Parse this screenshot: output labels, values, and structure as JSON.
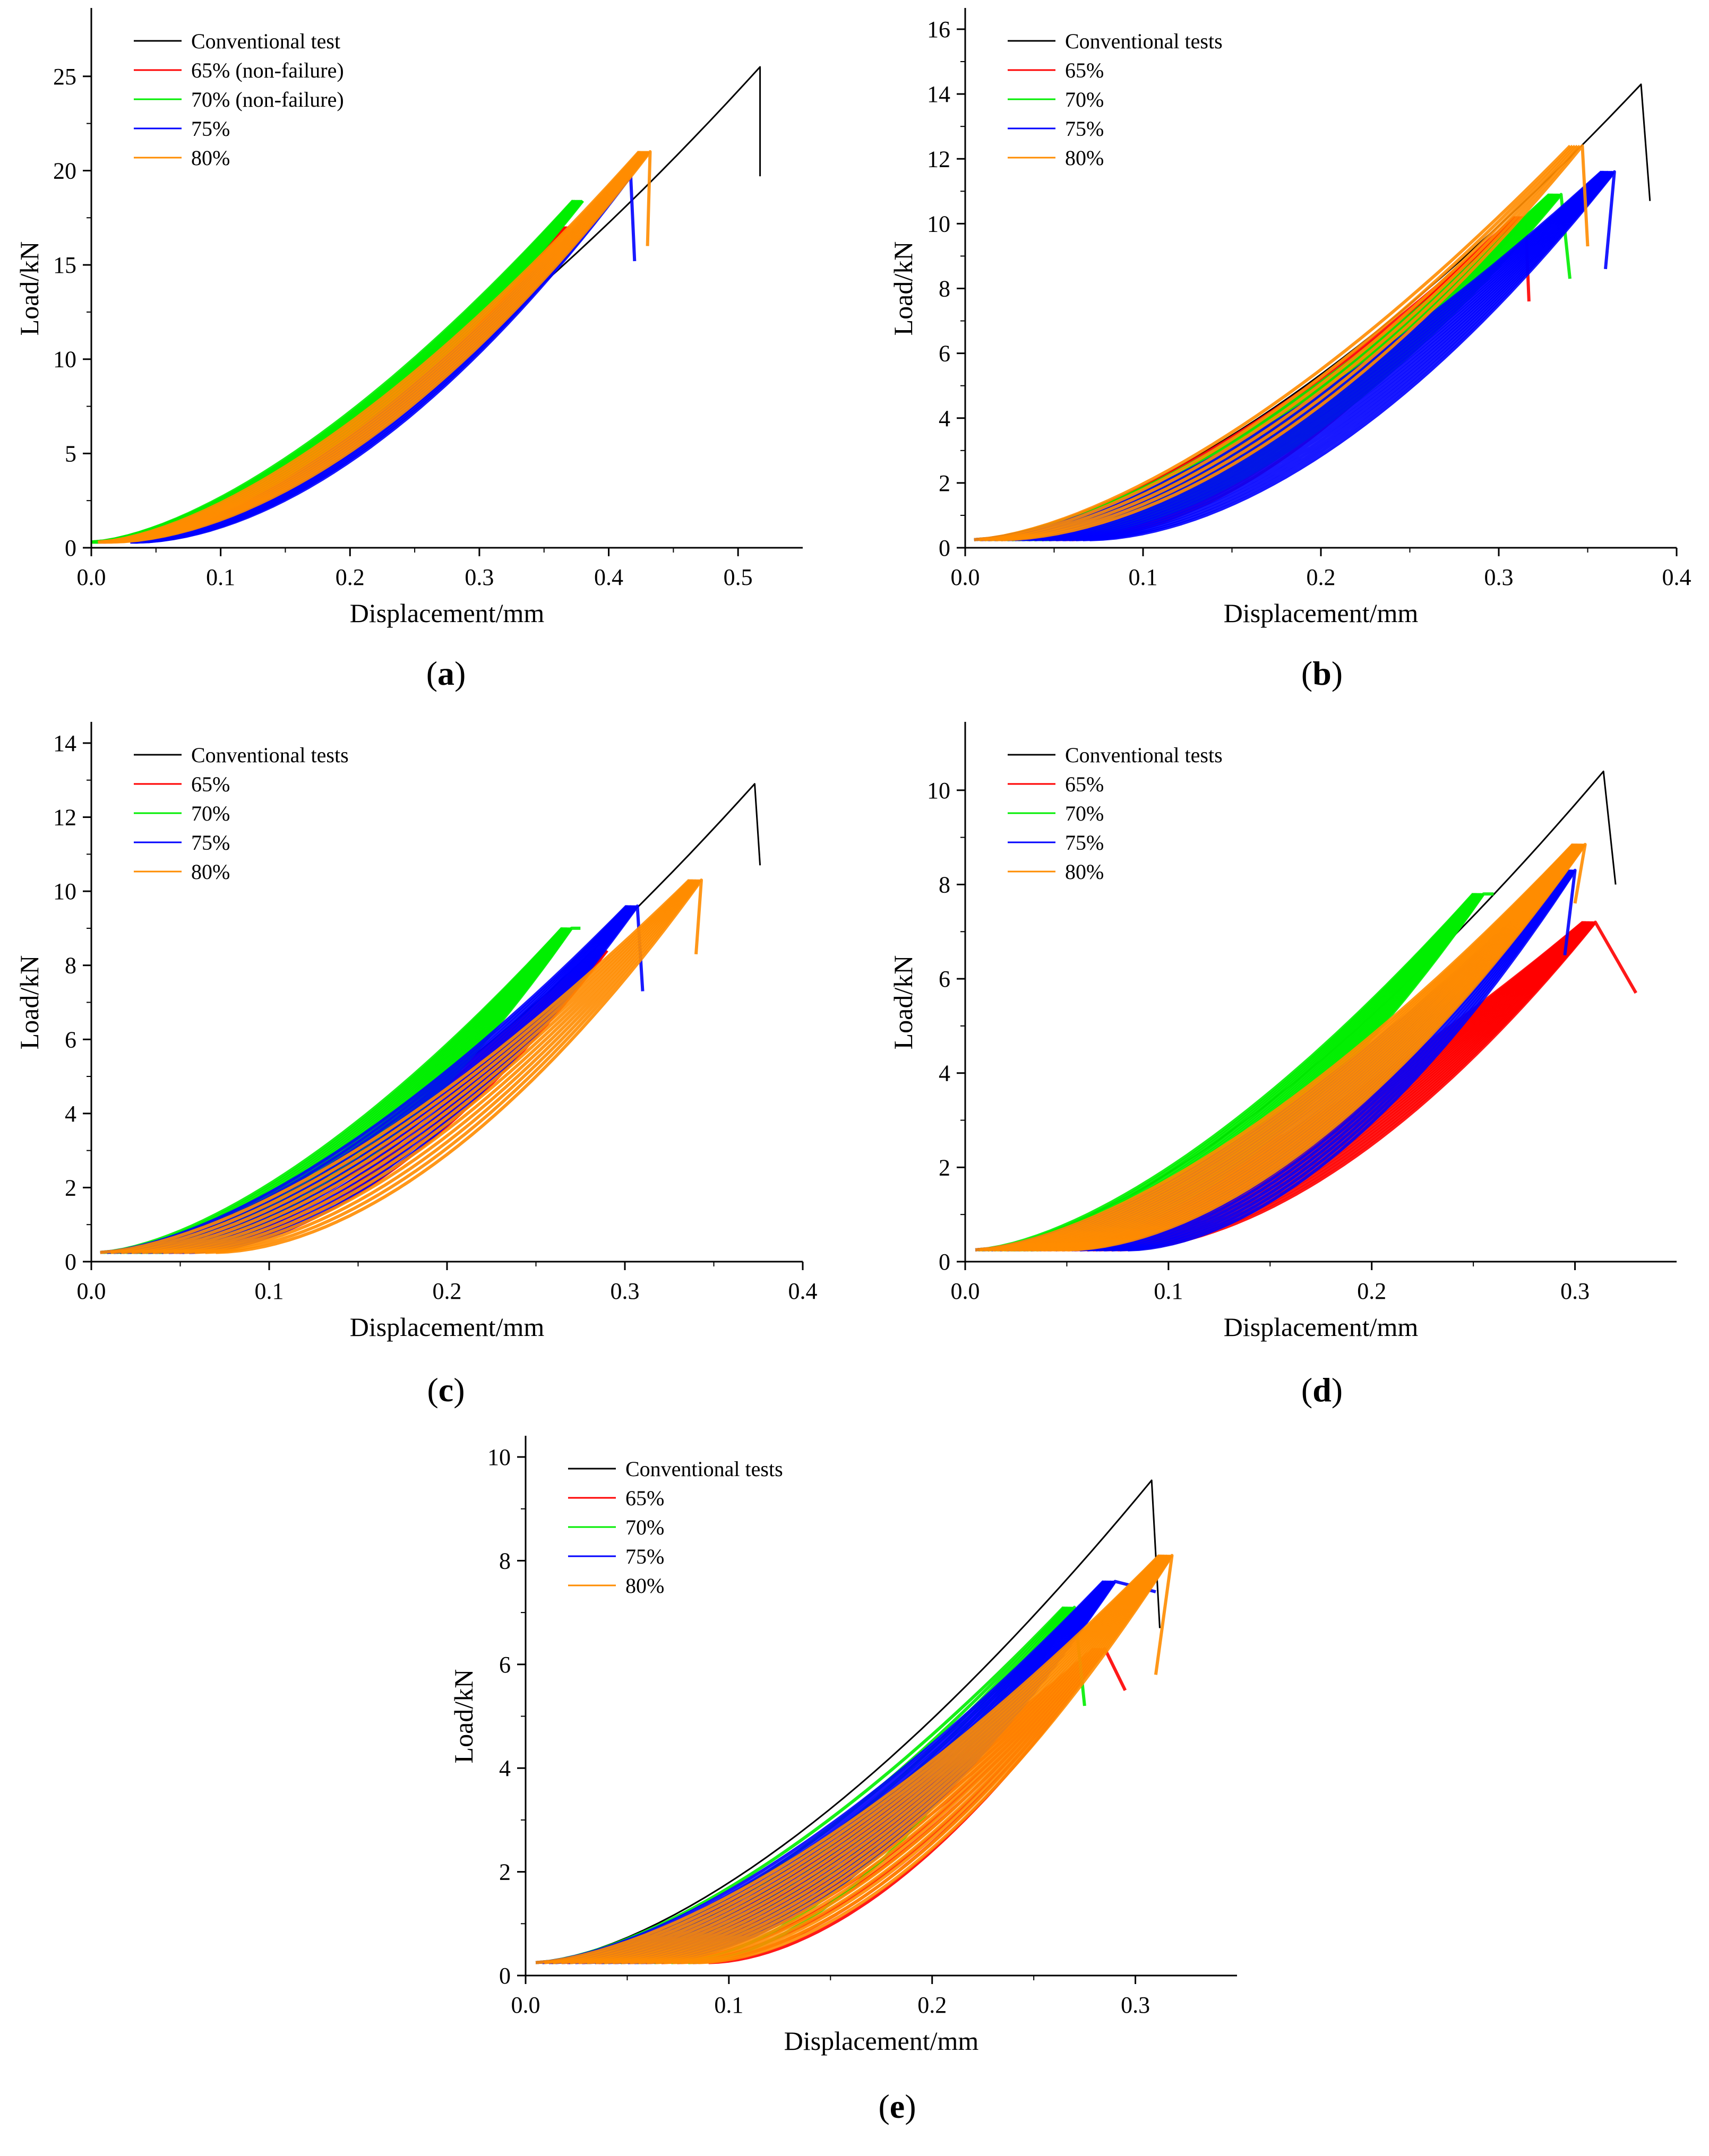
{
  "figure": {
    "panels": [
      {
        "id": "a",
        "caption_open": "(",
        "caption_letter": "a",
        "caption_close": ")"
      },
      {
        "id": "b",
        "caption_open": "(",
        "caption_letter": "b",
        "caption_close": ")"
      },
      {
        "id": "c",
        "caption_open": "(",
        "caption_letter": "c",
        "caption_close": ")"
      },
      {
        "id": "d",
        "caption_open": "(",
        "caption_letter": "d",
        "caption_close": ")"
      },
      {
        "id": "e",
        "caption_open": "(",
        "caption_letter": "e",
        "caption_close": ")"
      }
    ]
  },
  "chart_data": [
    {
      "type": "line",
      "panel": "a",
      "xlabel": "Displacement/mm",
      "ylabel": "Load/kN",
      "xlim": [
        0.0,
        0.55
      ],
      "ylim": [
        0,
        27.5
      ],
      "xticks": [
        0.0,
        0.1,
        0.2,
        0.3,
        0.4,
        0.5
      ],
      "xtick_labels": [
        "0.0",
        "0.1",
        "0.2",
        "0.3",
        "0.4",
        "0.5"
      ],
      "yticks": [
        0,
        5,
        10,
        15,
        20,
        25
      ],
      "ytick_labels": [
        "0",
        "5",
        "10",
        "15",
        "20",
        "25"
      ],
      "legend": {
        "placement": "top-left"
      },
      "series": [
        {
          "name": "Conventional test",
          "color": "#000000",
          "x0": 0.0,
          "y0": 0.3,
          "xpeak": 0.517,
          "ypeak": 25.5,
          "xend": 0.517,
          "yend": 19.7,
          "xmin": 0.0,
          "bands": 1
        },
        {
          "name": "65% (non-failure)",
          "color": "#ff0000",
          "x0": 0.0,
          "y0": 0.3,
          "xpeak": 0.37,
          "ypeak": 17.0,
          "xend": 0.37,
          "yend": 17.0,
          "xmin": 0.01,
          "bands": 10
        },
        {
          "name": "70% (non-failure)",
          "color": "#00ee00",
          "x0": 0.0,
          "y0": 0.3,
          "xpeak": 0.38,
          "ypeak": 18.4,
          "xend": 0.38,
          "yend": 18.4,
          "xmin": 0.005,
          "bands": 14
        },
        {
          "name": "75%",
          "color": "#0000ff",
          "x0": 0.03,
          "y0": 0.3,
          "xpeak": 0.417,
          "ypeak": 19.7,
          "xend": 0.42,
          "yend": 15.2,
          "xmin": 0.035,
          "bands": 12
        },
        {
          "name": "80%",
          "color": "#ff8c00",
          "x0": 0.005,
          "y0": 0.3,
          "xpeak": 0.432,
          "ypeak": 21.0,
          "xend": 0.43,
          "yend": 16.0,
          "xmin": 0.015,
          "bands": 12
        }
      ]
    },
    {
      "type": "line",
      "panel": "b",
      "xlabel": "Displacement/mm",
      "ylabel": "Load/kN",
      "xlim": [
        0.0,
        0.4
      ],
      "ylim": [
        0,
        16
      ],
      "xticks": [
        0.0,
        0.1,
        0.2,
        0.3,
        0.4
      ],
      "xtick_labels": [
        "0.0",
        "0.1",
        "0.2",
        "0.3",
        "0.4"
      ],
      "yticks": [
        0,
        2,
        4,
        6,
        8,
        10,
        12,
        14,
        16
      ],
      "ytick_labels": [
        "0",
        "2",
        "4",
        "6",
        "8",
        "10",
        "12",
        "14",
        "16"
      ],
      "legend": {
        "placement": "top-left"
      },
      "series": [
        {
          "name": "Conventional tests",
          "color": "#000000",
          "x0": 0.005,
          "y0": 0.25,
          "xpeak": 0.38,
          "ypeak": 14.3,
          "xend": 0.385,
          "yend": 10.7,
          "xmin": 0.005,
          "bands": 1
        },
        {
          "name": "65%",
          "color": "#ff0000",
          "x0": 0.005,
          "y0": 0.25,
          "xpeak": 0.315,
          "ypeak": 10.2,
          "xend": 0.317,
          "yend": 7.6,
          "xmin": 0.06,
          "bands": 14
        },
        {
          "name": "70%",
          "color": "#00ee00",
          "x0": 0.005,
          "y0": 0.25,
          "xpeak": 0.335,
          "ypeak": 10.9,
          "xend": 0.34,
          "yend": 8.3,
          "xmin": 0.045,
          "bands": 14
        },
        {
          "name": "75%",
          "color": "#0000ff",
          "x0": 0.005,
          "y0": 0.25,
          "xpeak": 0.365,
          "ypeak": 11.6,
          "xend": 0.36,
          "yend": 8.6,
          "xmin": 0.07,
          "bands": 18
        },
        {
          "name": "80%",
          "color": "#ff8c00",
          "x0": 0.005,
          "y0": 0.25,
          "xpeak": 0.347,
          "ypeak": 12.4,
          "xend": 0.35,
          "yend": 9.3,
          "xmin": 0.02,
          "bands": 6
        }
      ]
    },
    {
      "type": "line",
      "panel": "c",
      "xlabel": "Displacement/mm",
      "ylabel": "Load/kN",
      "xlim": [
        0.0,
        0.4
      ],
      "ylim": [
        0,
        14
      ],
      "xticks": [
        0.0,
        0.1,
        0.2,
        0.3,
        0.4
      ],
      "xtick_labels": [
        "0.0",
        "0.1",
        "0.2",
        "0.3",
        "0.4"
      ],
      "yticks": [
        0,
        2,
        4,
        6,
        8,
        10,
        12,
        14
      ],
      "ytick_labels": [
        "0",
        "2",
        "4",
        "6",
        "8",
        "10",
        "12",
        "14"
      ],
      "legend": {
        "placement": "top-left"
      },
      "series": [
        {
          "name": "Conventional tests",
          "color": "#000000",
          "x0": 0.005,
          "y0": 0.25,
          "xpeak": 0.373,
          "ypeak": 12.9,
          "xend": 0.376,
          "yend": 10.7,
          "xmin": 0.005,
          "bands": 1
        },
        {
          "name": "65%",
          "color": "#ff0000",
          "x0": 0.005,
          "y0": 0.25,
          "xpeak": 0.29,
          "ypeak": 8.4,
          "xend": 0.29,
          "yend": 8.4,
          "xmin": 0.055,
          "bands": 10
        },
        {
          "name": "70%",
          "color": "#00ee00",
          "x0": 0.005,
          "y0": 0.25,
          "xpeak": 0.27,
          "ypeak": 9.0,
          "xend": 0.275,
          "yend": 9.0,
          "xmin": 0.04,
          "bands": 20
        },
        {
          "name": "75%",
          "color": "#0000ff",
          "x0": 0.005,
          "y0": 0.25,
          "xpeak": 0.307,
          "ypeak": 9.6,
          "xend": 0.31,
          "yend": 7.3,
          "xmin": 0.055,
          "bands": 14
        },
        {
          "name": "80%",
          "color": "#ff8c00",
          "x0": 0.005,
          "y0": 0.25,
          "xpeak": 0.343,
          "ypeak": 10.3,
          "xend": 0.34,
          "yend": 8.3,
          "xmin": 0.07,
          "bands": 12
        }
      ]
    },
    {
      "type": "line",
      "panel": "d",
      "xlabel": "Displacement/mm",
      "ylabel": "Load/kN",
      "xlim": [
        0.0,
        0.35
      ],
      "ylim": [
        0,
        11
      ],
      "xticks": [
        0.0,
        0.1,
        0.2,
        0.3
      ],
      "xtick_labels": [
        "0.0",
        "0.1",
        "0.2",
        "0.3"
      ],
      "yticks": [
        0,
        2,
        4,
        6,
        8,
        10
      ],
      "ytick_labels": [
        "0",
        "2",
        "4",
        "6",
        "8",
        "10"
      ],
      "legend": {
        "placement": "top-left"
      },
      "series": [
        {
          "name": "Conventional tests",
          "color": "#000000",
          "x0": 0.005,
          "y0": 0.25,
          "xpeak": 0.314,
          "ypeak": 10.4,
          "xend": 0.32,
          "yend": 8.0,
          "xmin": 0.005,
          "bands": 1
        },
        {
          "name": "65%",
          "color": "#ff0000",
          "x0": 0.005,
          "y0": 0.25,
          "xpeak": 0.31,
          "ypeak": 7.2,
          "xend": 0.33,
          "yend": 5.7,
          "xmin": 0.075,
          "bands": 24
        },
        {
          "name": "70%",
          "color": "#00ee00",
          "x0": 0.005,
          "y0": 0.25,
          "xpeak": 0.255,
          "ypeak": 7.8,
          "xend": 0.26,
          "yend": 7.8,
          "xmin": 0.035,
          "bands": 20
        },
        {
          "name": "75%",
          "color": "#0000ff",
          "x0": 0.005,
          "y0": 0.25,
          "xpeak": 0.3,
          "ypeak": 8.3,
          "xend": 0.295,
          "yend": 6.5,
          "xmin": 0.08,
          "bands": 20
        },
        {
          "name": "80%",
          "color": "#ff8c00",
          "x0": 0.005,
          "y0": 0.25,
          "xpeak": 0.305,
          "ypeak": 8.85,
          "xend": 0.3,
          "yend": 7.6,
          "xmin": 0.05,
          "bands": 22
        }
      ]
    },
    {
      "type": "line",
      "panel": "e",
      "xlabel": "Displacement/mm",
      "ylabel": "Load/kN",
      "xlim": [
        0.0,
        0.35
      ],
      "ylim": [
        0,
        10
      ],
      "xticks": [
        0.0,
        0.1,
        0.2,
        0.3
      ],
      "xtick_labels": [
        "0.0",
        "0.1",
        "0.2",
        "0.3"
      ],
      "yticks": [
        0,
        2,
        4,
        6,
        8,
        10
      ],
      "ytick_labels": [
        "0",
        "2",
        "4",
        "6",
        "8",
        "10"
      ],
      "legend": {
        "placement": "top-left"
      },
      "series": [
        {
          "name": "Conventional tests",
          "color": "#000000",
          "x0": 0.005,
          "y0": 0.25,
          "xpeak": 0.308,
          "ypeak": 9.55,
          "xend": 0.312,
          "yend": 6.7,
          "xmin": 0.005,
          "bands": 1
        },
        {
          "name": "65%",
          "color": "#ff0000",
          "x0": 0.005,
          "y0": 0.25,
          "xpeak": 0.285,
          "ypeak": 6.3,
          "xend": 0.295,
          "yend": 5.5,
          "xmin": 0.09,
          "bands": 12
        },
        {
          "name": "70%",
          "color": "#00ee00",
          "x0": 0.005,
          "y0": 0.25,
          "xpeak": 0.27,
          "ypeak": 7.1,
          "xend": 0.275,
          "yend": 5.2,
          "xmin": 0.08,
          "bands": 10
        },
        {
          "name": "75%",
          "color": "#0000ff",
          "x0": 0.005,
          "y0": 0.25,
          "xpeak": 0.29,
          "ypeak": 7.6,
          "xend": 0.31,
          "yend": 7.4,
          "xmin": 0.06,
          "bands": 18
        },
        {
          "name": "80%",
          "color": "#ff8c00",
          "x0": 0.005,
          "y0": 0.25,
          "xpeak": 0.318,
          "ypeak": 8.1,
          "xend": 0.31,
          "yend": 5.8,
          "xmin": 0.085,
          "bands": 20
        }
      ]
    }
  ]
}
